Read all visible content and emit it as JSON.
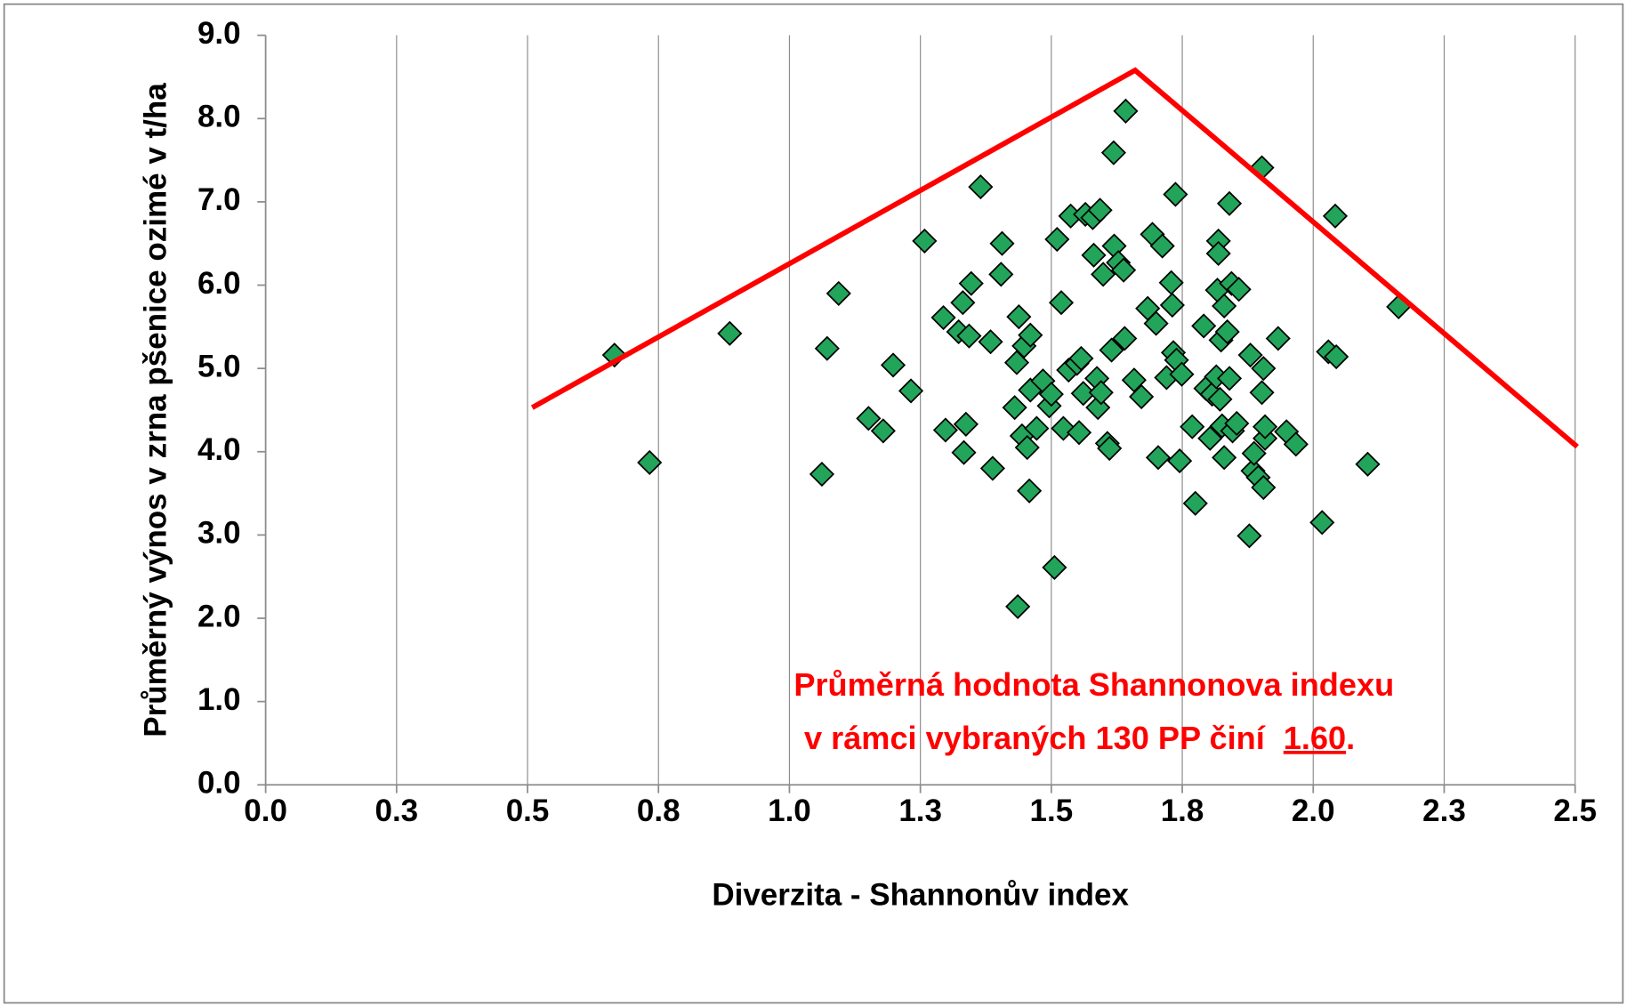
{
  "chart_data": {
    "type": "scatter",
    "xlabel": "Diverzita - Shannonův index",
    "ylabel": "Průměrný výnos v zrna pšenice ozimé  v t/ha",
    "xlim": [
      0,
      2.5
    ],
    "ylim": [
      0,
      9
    ],
    "xticks": [
      {
        "value": 0,
        "label": "0.0"
      },
      {
        "value": 0.25,
        "label": "0.3"
      },
      {
        "value": 0.5,
        "label": "0.5"
      },
      {
        "value": 0.75,
        "label": "0.8"
      },
      {
        "value": 1,
        "label": "1.0"
      },
      {
        "value": 1.25,
        "label": "1.3"
      },
      {
        "value": 1.5,
        "label": "1.5"
      },
      {
        "value": 1.75,
        "label": "1.8"
      },
      {
        "value": 2,
        "label": "2.0"
      },
      {
        "value": 2.25,
        "label": "2.3"
      },
      {
        "value": 2.5,
        "label": "2.5"
      }
    ],
    "yticks": [
      {
        "value": 0,
        "label": "0.0"
      },
      {
        "value": 1,
        "label": "1.0"
      },
      {
        "value": 2,
        "label": "2.0"
      },
      {
        "value": 3,
        "label": "3.0"
      },
      {
        "value": 4,
        "label": "4.0"
      },
      {
        "value": 5,
        "label": "5.0"
      },
      {
        "value": 6,
        "label": "6.0"
      },
      {
        "value": 7,
        "label": "7.0"
      },
      {
        "value": 8,
        "label": "8.0"
      },
      {
        "value": 9,
        "label": "9.0"
      }
    ],
    "grid": "x",
    "series": [
      {
        "type": "scatter",
        "marker": "diamond",
        "color": "#22a55a",
        "x": [
          0.666,
          0.733,
          0.886,
          1.062,
          1.072,
          1.094,
          1.151,
          1.179,
          1.198,
          1.232,
          1.258,
          1.294,
          1.298,
          1.323,
          1.331,
          1.337,
          1.333,
          1.343,
          1.347,
          1.365,
          1.384,
          1.388,
          1.404,
          1.406,
          1.43,
          1.434,
          1.436,
          1.438,
          1.444,
          1.448,
          1.46,
          1.46,
          1.454,
          1.458,
          1.472,
          1.484,
          1.496,
          1.5,
          1.506,
          1.511,
          1.519,
          1.523,
          1.533,
          1.537,
          1.549,
          1.553,
          1.557,
          1.561,
          1.565,
          1.579,
          1.581,
          1.587,
          1.589,
          1.593,
          1.595,
          1.599,
          1.607,
          1.611,
          1.615,
          1.619,
          1.62,
          1.628,
          1.638,
          1.64,
          1.642,
          1.658,
          1.672,
          1.684,
          1.693,
          1.7,
          1.704,
          1.712,
          1.72,
          1.729,
          1.731,
          1.733,
          1.737,
          1.739,
          1.745,
          1.749,
          1.769,
          1.775,
          1.791,
          1.795,
          1.803,
          1.807,
          1.815,
          1.819,
          1.819,
          1.817,
          1.822,
          1.824,
          1.826,
          1.83,
          1.83,
          1.836,
          1.84,
          1.84,
          1.844,
          1.846,
          1.854,
          1.858,
          1.88,
          1.878,
          1.885,
          1.887,
          1.895,
          1.902,
          1.902,
          1.905,
          1.905,
          1.908,
          1.908,
          1.933,
          1.949,
          1.967,
          2.017,
          2.029,
          2.042,
          2.044,
          2.104,
          2.163
        ],
        "values": [
          5.16,
          3.87,
          5.42,
          3.73,
          5.24,
          5.9,
          4.4,
          4.25,
          5.04,
          4.73,
          6.53,
          5.61,
          4.26,
          5.44,
          5.79,
          4.33,
          3.99,
          5.39,
          6.02,
          7.18,
          5.32,
          3.8,
          6.13,
          6.5,
          4.53,
          5.07,
          2.14,
          5.62,
          4.19,
          5.27,
          5.4,
          4.74,
          4.05,
          3.53,
          4.28,
          4.85,
          4.55,
          4.69,
          2.61,
          6.55,
          5.79,
          4.28,
          4.98,
          6.83,
          5.06,
          4.23,
          5.12,
          4.7,
          6.85,
          6.81,
          6.36,
          4.88,
          4.53,
          6.9,
          4.71,
          6.13,
          4.1,
          4.04,
          5.22,
          7.59,
          6.47,
          6.27,
          6.18,
          5.36,
          8.09,
          4.86,
          4.66,
          5.72,
          6.61,
          5.54,
          3.93,
          6.47,
          4.89,
          6.03,
          5.76,
          5.19,
          7.09,
          5.1,
          3.89,
          4.93,
          4.3,
          3.38,
          5.51,
          4.76,
          4.16,
          4.69,
          4.9,
          6.53,
          6.38,
          5.94,
          4.63,
          5.34,
          4.31,
          3.93,
          5.75,
          5.44,
          6.98,
          4.88,
          6.02,
          4.25,
          4.34,
          5.95,
          5.16,
          2.99,
          3.77,
          3.98,
          3.69,
          7.41,
          4.71,
          3.57,
          5.0,
          4.16,
          4.3,
          5.36,
          4.24,
          4.09,
          3.15,
          5.2,
          6.83,
          5.14,
          3.85,
          5.74
        ]
      },
      {
        "type": "line",
        "color": "#ff0000",
        "x": [
          0.509,
          1.66,
          2.504
        ],
        "values": [
          4.53,
          8.58,
          4.06
        ]
      }
    ],
    "annotation": [
      "Průměrná hodnota Shannonova indexu",
      "v rámci vybraných 130 PP činí",
      "1.60",
      "."
    ]
  }
}
